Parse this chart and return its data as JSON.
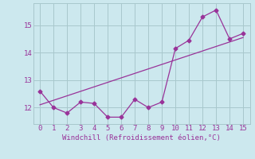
{
  "x_data": [
    0,
    1,
    2,
    3,
    4,
    5,
    6,
    7,
    8,
    9,
    10,
    11,
    12,
    13,
    14,
    15
  ],
  "y_data": [
    12.6,
    12.0,
    11.8,
    12.2,
    12.15,
    11.65,
    11.65,
    12.3,
    12.0,
    12.2,
    14.15,
    14.45,
    15.3,
    15.55,
    14.5,
    14.7
  ],
  "trend_x": [
    0,
    15
  ],
  "trend_y": [
    12.1,
    14.55
  ],
  "line_color": "#993399",
  "bg_color": "#cce8ee",
  "grid_color": "#a8c8cc",
  "xlabel": "Windchill (Refroidissement éolien,°C)",
  "ylim": [
    11.4,
    15.8
  ],
  "xlim": [
    -0.5,
    15.5
  ],
  "yticks": [
    12,
    13,
    14,
    15
  ],
  "xticks": [
    0,
    1,
    2,
    3,
    4,
    5,
    6,
    7,
    8,
    9,
    10,
    11,
    12,
    13,
    14,
    15
  ],
  "marker": "D",
  "markersize": 2.5,
  "linewidth": 0.9
}
